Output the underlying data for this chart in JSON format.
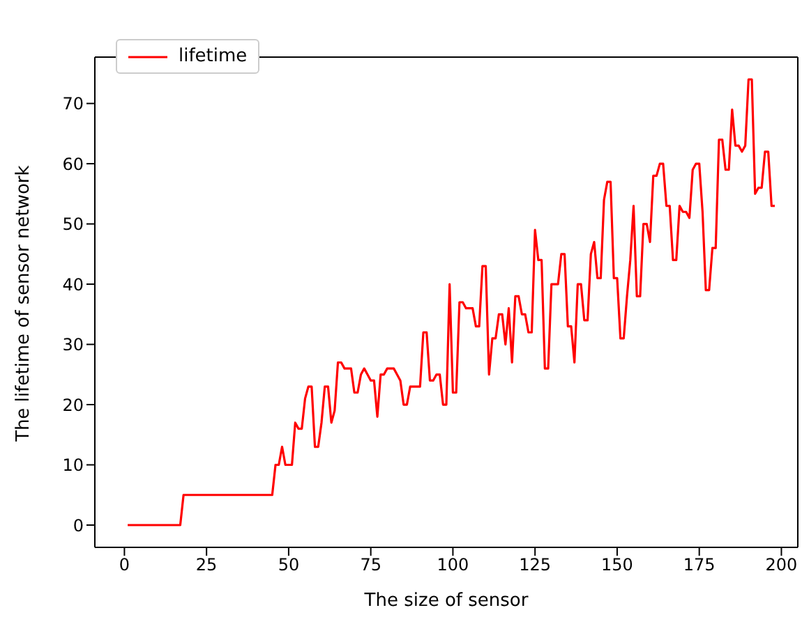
{
  "chart_data": {
    "type": "line",
    "xlabel": "The size of sensor",
    "ylabel": "The lifetime of sensor network",
    "x": [
      1,
      17,
      18,
      45,
      46,
      47,
      48,
      49,
      50,
      51,
      52,
      53,
      54,
      55,
      56,
      57,
      58,
      59,
      60,
      61,
      62,
      63,
      64,
      65,
      66,
      67,
      68,
      69,
      70,
      71,
      72,
      73,
      74,
      75,
      76,
      77,
      78,
      79,
      80,
      81,
      82,
      83,
      84,
      85,
      86,
      87,
      88,
      89,
      90,
      91,
      92,
      93,
      94,
      95,
      96,
      97,
      98,
      99,
      100,
      101,
      102,
      103,
      104,
      105,
      106,
      107,
      108,
      109,
      110,
      111,
      112,
      113,
      114,
      115,
      116,
      117,
      118,
      119,
      120,
      121,
      122,
      123,
      124,
      125,
      126,
      127,
      128,
      129,
      130,
      131,
      132,
      133,
      134,
      135,
      136,
      137,
      138,
      139,
      140,
      141,
      142,
      143,
      144,
      145,
      146,
      147,
      148,
      149,
      150,
      151,
      152,
      153,
      154,
      155,
      156,
      157,
      158,
      159,
      160,
      161,
      162,
      163,
      164,
      165,
      166,
      167,
      168,
      169,
      170,
      171,
      172,
      173,
      174,
      175,
      176,
      177,
      178,
      179,
      180,
      181,
      182,
      183,
      184,
      185,
      186,
      187,
      188,
      189,
      190,
      191,
      192,
      193,
      194,
      195,
      196,
      197,
      198
    ],
    "series": [
      {
        "name": "lifetime",
        "color": "#ff0000",
        "values": [
          0,
          0,
          5,
          5,
          10,
          10,
          13,
          10,
          10,
          10,
          17,
          16,
          16,
          21,
          23,
          23,
          13,
          13,
          17,
          23,
          23,
          17,
          19,
          27,
          27,
          26,
          26,
          26,
          22,
          22,
          25,
          26,
          25,
          24,
          24,
          18,
          25,
          25,
          26,
          26,
          26,
          25,
          24,
          20,
          20,
          23,
          23,
          23,
          23,
          32,
          32,
          24,
          24,
          25,
          25,
          20,
          20,
          40,
          22,
          22,
          37,
          37,
          36,
          36,
          36,
          33,
          33,
          43,
          43,
          25,
          31,
          31,
          35,
          35,
          30,
          36,
          27,
          38,
          38,
          35,
          35,
          32,
          32,
          49,
          44,
          44,
          26,
          26,
          40,
          40,
          40,
          45,
          45,
          33,
          33,
          27,
          40,
          40,
          34,
          34,
          45,
          47,
          41,
          41,
          54,
          57,
          57,
          41,
          41,
          31,
          31,
          38,
          44,
          53,
          38,
          38,
          50,
          50,
          47,
          58,
          58,
          60,
          60,
          53,
          53,
          44,
          44,
          53,
          52,
          52,
          51,
          59,
          60,
          60,
          52,
          39,
          39,
          46,
          46,
          64,
          64,
          59,
          59,
          69,
          63,
          63,
          62,
          63,
          74,
          74,
          55,
          56,
          56,
          62,
          62,
          53,
          53
        ]
      }
    ],
    "xlim": [
      -9,
      205
    ],
    "xticks": [
      0,
      25,
      50,
      75,
      100,
      125,
      150,
      175,
      200
    ],
    "ylim": [
      -3.7,
      77.7
    ],
    "yticks": [
      0,
      10,
      20,
      30,
      40,
      50,
      60,
      70
    ],
    "legend": "top left",
    "grid": false,
    "marker": "none",
    "line_style": "solid"
  }
}
